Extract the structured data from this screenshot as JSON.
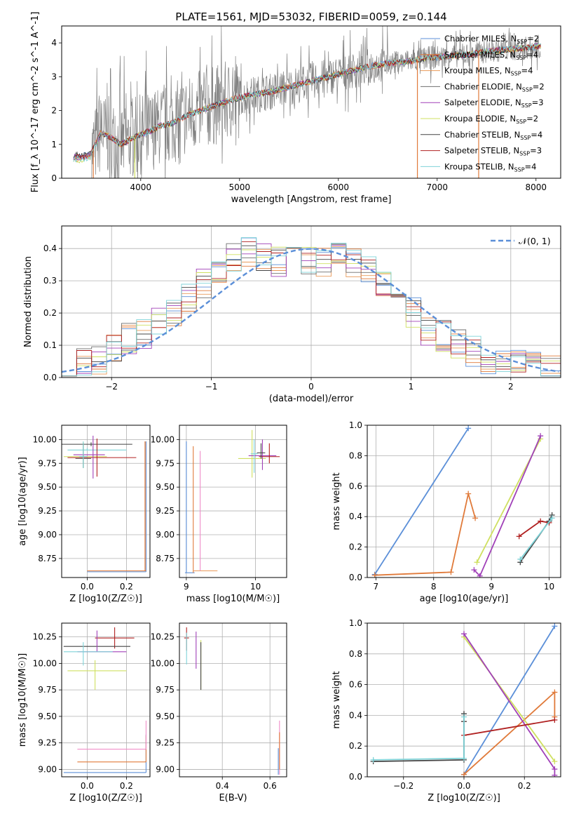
{
  "title": "PLATE=1561, MJD=53032, FIBERID=0059, z=0.144",
  "colors": {
    "chabrier_miles": "#5b8fd8",
    "salpeter_miles": "#e07a3a",
    "kroupa_miles": "#e99a5a",
    "chabrier_elodie": "#6f6f6f",
    "salpeter_elodie": "#a040b8",
    "kroupa_elodie": "#cfe060",
    "chabrier_stelib": "#444444",
    "salpeter_stelib": "#b02020",
    "kroupa_stelib": "#7fd3d8",
    "data_spectrum": "#808080",
    "normal_curve": "#5b8fd8"
  },
  "chart_data": [
    {
      "type": "line",
      "id": "spectrum",
      "xlabel": "wavelength [Angstrom, rest frame]",
      "ylabel": "Flux [f_λ 10^-17 erg cm^-2 s^-1 A^-1]",
      "xlim": [
        3200,
        8250
      ],
      "ylim": [
        0,
        4.5
      ],
      "xticks": [
        4000,
        5000,
        6000,
        7000,
        8000
      ],
      "yticks": [
        0,
        1,
        2,
        3,
        4
      ],
      "legend_position": "top-right",
      "legend": [
        {
          "name": "Chabrier MILES",
          "nssp": "2"
        },
        {
          "name": "Salpeter MILES",
          "nssp": "4"
        },
        {
          "name": "Kroupa MILES",
          "nssp": "4"
        },
        {
          "name": "Chabrier ELODIE",
          "nssp": "2"
        },
        {
          "name": "Salpeter ELODIE",
          "nssp": "3"
        },
        {
          "name": "Kroupa ELODIE",
          "nssp": "2"
        },
        {
          "name": "Chabrier STELIB",
          "nssp": "4"
        },
        {
          "name": "Salpeter STELIB",
          "nssp": "3"
        },
        {
          "name": "Kroupa STELIB",
          "nssp": "4"
        }
      ],
      "model_continuum": {
        "x": [
          3320,
          3400,
          3500,
          3600,
          3700,
          3800,
          3900,
          4000,
          4100,
          4200,
          4300,
          4400,
          4500,
          4700,
          4900,
          5100,
          5300,
          5500,
          5700,
          5900,
          6100,
          6300,
          6500,
          6700,
          6900,
          7100,
          7300,
          7500,
          7700,
          7900,
          8050
        ],
        "y": [
          0.7,
          0.65,
          0.75,
          1.35,
          1.2,
          1.0,
          1.15,
          1.3,
          1.4,
          1.55,
          1.6,
          1.75,
          1.9,
          2.1,
          2.3,
          2.45,
          2.55,
          2.7,
          2.85,
          3.0,
          3.15,
          3.3,
          3.4,
          3.45,
          3.55,
          3.6,
          3.65,
          3.75,
          3.8,
          3.85,
          3.9
        ]
      }
    },
    {
      "type": "bar",
      "id": "residual_hist",
      "xlabel": "(data-model)/error",
      "ylabel": "Normed distribution",
      "xlim": [
        -2.5,
        2.5
      ],
      "ylim": [
        0,
        0.47
      ],
      "xticks": [
        -2,
        -1,
        0,
        1,
        2
      ],
      "yticks": [
        0.0,
        0.1,
        0.2,
        0.3,
        0.4
      ],
      "legend": [
        {
          "name": "𝒩(0, 1)"
        }
      ],
      "legend_position": "top-right",
      "bin_edges": [
        -2.5,
        -2.35,
        -2.2,
        -2.05,
        -1.9,
        -1.75,
        -1.6,
        -1.45,
        -1.3,
        -1.15,
        -1.0,
        -0.85,
        -0.7,
        -0.55,
        -0.4,
        -0.25,
        -0.1,
        0.05,
        0.2,
        0.35,
        0.5,
        0.65,
        0.8,
        0.95,
        1.1,
        1.25,
        1.4,
        1.55,
        1.7,
        1.85,
        2.0,
        2.15,
        2.3,
        2.5
      ],
      "values": [
        0.03,
        0.04,
        0.06,
        0.09,
        0.12,
        0.14,
        0.17,
        0.2,
        0.24,
        0.29,
        0.32,
        0.37,
        0.39,
        0.38,
        0.36,
        0.4,
        0.37,
        0.36,
        0.38,
        0.36,
        0.33,
        0.3,
        0.25,
        0.2,
        0.15,
        0.13,
        0.1,
        0.08,
        0.06,
        0.05,
        0.04,
        0.03,
        0.02
      ]
    },
    {
      "type": "scatter",
      "id": "age_vs_z",
      "xlabel": "Z [log10(Z/Z☉)]",
      "ylabel": "age  [log10(age/yr)]",
      "xlim": [
        -0.13,
        0.32
      ],
      "ylim": [
        8.55,
        10.15
      ],
      "xticks": [
        0.0,
        0.2
      ],
      "yticks": [
        8.75,
        9.0,
        9.25,
        9.5,
        9.75,
        10.0
      ]
    },
    {
      "type": "scatter",
      "id": "age_vs_mass",
      "xlabel": "mass [log10(M/M☉)]",
      "ylabel": "",
      "xlim": [
        8.9,
        10.45
      ],
      "ylim": [
        8.55,
        10.15
      ],
      "xticks": [
        9,
        10
      ],
      "yticks": [
        8.75,
        9.0,
        9.25,
        9.5,
        9.75,
        10.0
      ]
    },
    {
      "type": "line",
      "id": "massweight_vs_age",
      "xlabel": "age  [log10(age/yr)]",
      "ylabel": "mass weight",
      "xlim": [
        6.85,
        10.2
      ],
      "ylim": [
        0,
        1.0
      ],
      "xticks": [
        7,
        8,
        9,
        10
      ],
      "yticks": [
        0.0,
        0.2,
        0.4,
        0.6,
        0.8,
        1.0
      ]
    },
    {
      "type": "scatter",
      "id": "mass_vs_z",
      "xlabel": "Z [log10(Z/Z☉)]",
      "ylabel": "mass [log10(M/M☉)]",
      "xlim": [
        -0.13,
        0.32
      ],
      "ylim": [
        8.93,
        10.38
      ],
      "xticks": [
        0.0,
        0.2
      ],
      "yticks": [
        9.0,
        9.25,
        9.5,
        9.75,
        10.0,
        10.25
      ]
    },
    {
      "type": "scatter",
      "id": "mass_vs_ebv",
      "xlabel": "E(B-V)",
      "ylabel": "",
      "xlim": [
        0.22,
        0.67
      ],
      "ylim": [
        8.93,
        10.38
      ],
      "xticks": [
        0.4,
        0.6
      ],
      "yticks": [
        9.0,
        9.25,
        9.5,
        9.75,
        10.0,
        10.25
      ]
    },
    {
      "type": "line",
      "id": "massweight_vs_z",
      "xlabel": "Z [log10(Z/Z☉)]",
      "ylabel": "mass weight",
      "xlim": [
        -0.32,
        0.32
      ],
      "ylim": [
        0,
        1.0
      ],
      "xticks": [
        -0.2,
        0.0,
        0.2
      ],
      "yticks": [
        0.0,
        0.2,
        0.4,
        0.6,
        0.8,
        1.0
      ]
    }
  ]
}
